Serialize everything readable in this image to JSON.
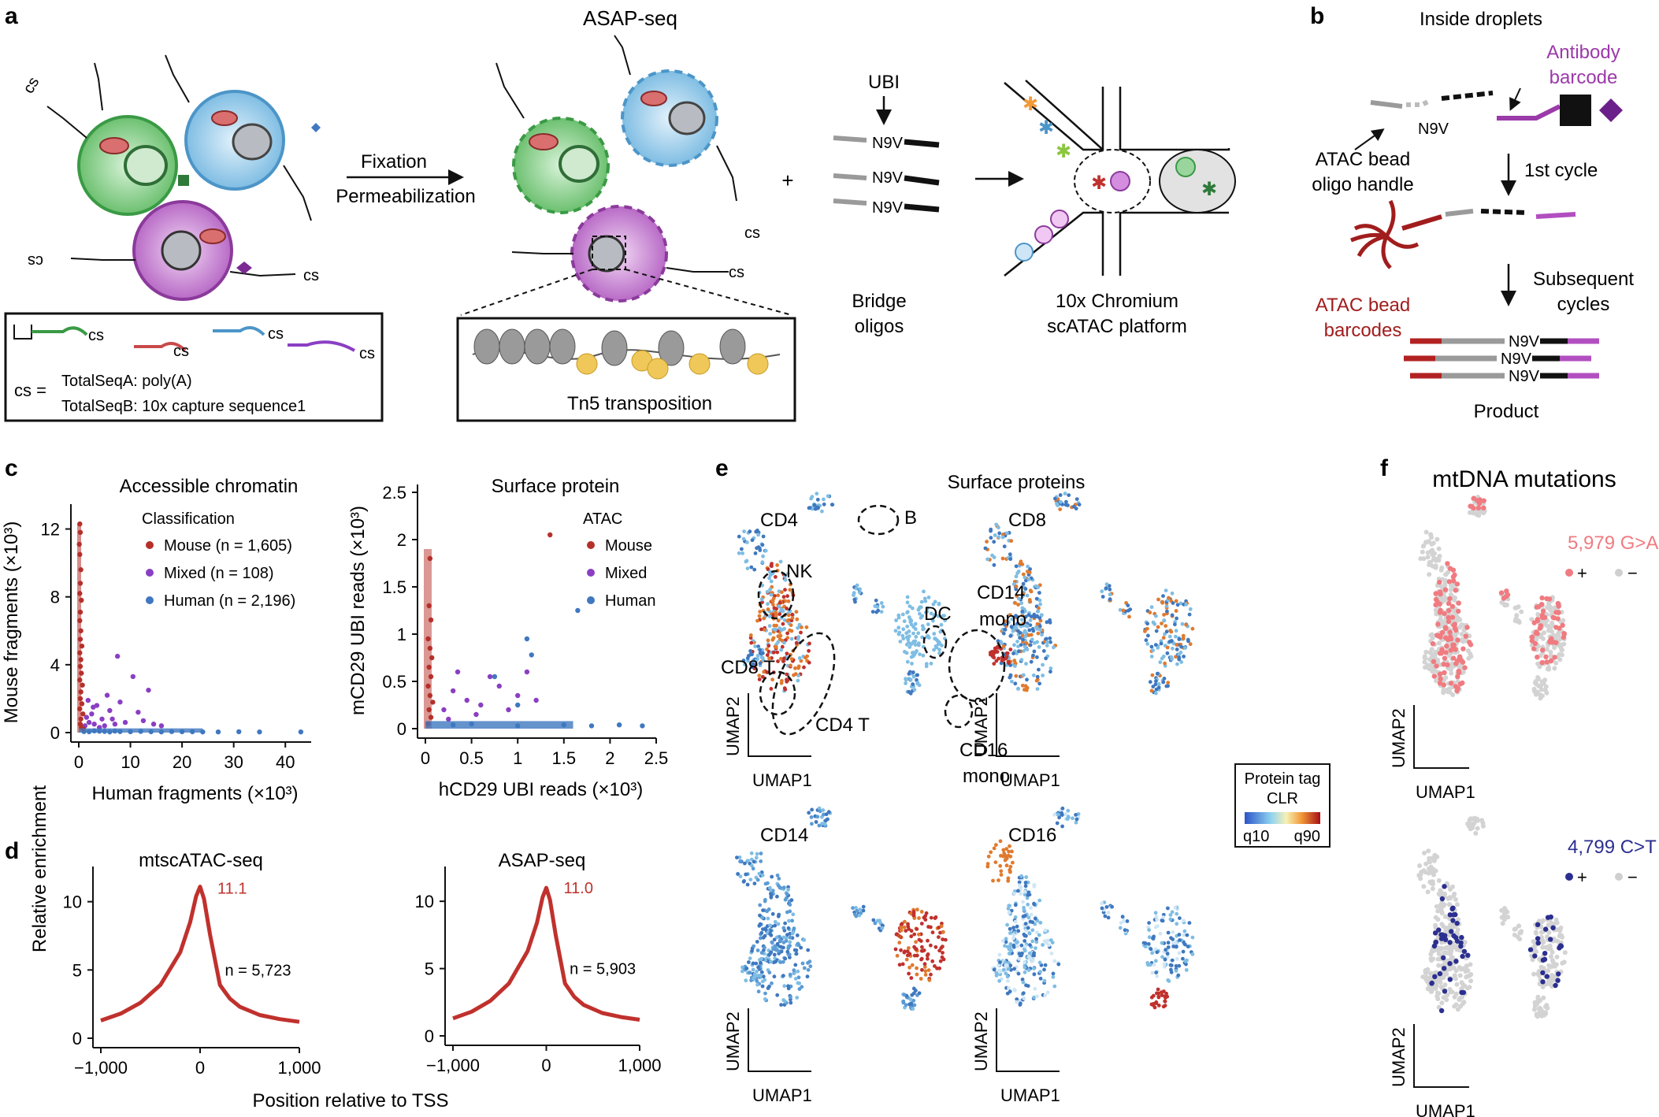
{
  "panels": {
    "a": {
      "label": "a",
      "title": "ASAP-seq",
      "arrow_top": "Fixation",
      "arrow_bottom": "Permeabilization",
      "plus": "+",
      "ubi": "UBI",
      "bridge_seq": "N9V",
      "bridge_label_1": "Bridge",
      "bridge_label_2": "oligos",
      "platform_1": "10x Chromium",
      "platform_2": "scATAC platform",
      "tn5": "Tn5 transposition",
      "cs": "cs",
      "cs_eq": "cs =",
      "legend_line1": "TotalSeqA: poly(A)",
      "legend_line2": "TotalSeqB: 10x capture sequence1"
    },
    "b": {
      "label": "b",
      "title": "Inside droplets",
      "antibody_1": "Antibody",
      "antibody_2": "barcode",
      "handle_1": "ATAC bead",
      "handle_2": "oligo handle",
      "first_cycle": "1st cycle",
      "subsequent_1": "Subsequent",
      "subsequent_2": "cycles",
      "bead_1": "ATAC bead",
      "bead_2": "barcodes",
      "product": "Product",
      "seq": "N9V"
    },
    "c": {
      "label": "c"
    },
    "d": {
      "label": "d",
      "xlabel": "Position relative to TSS",
      "ylabel": "Relative enrichment"
    },
    "e": {
      "label": "e",
      "title": "Surface proteins",
      "umap1": "UMAP1",
      "umap2": "UMAP2",
      "markers": [
        "CD4",
        "CD8",
        "CD14",
        "CD16"
      ],
      "clusters": {
        "b": "B",
        "nk": "NK",
        "dc": "DC",
        "cd14_1": "CD14",
        "cd14_2": "mono",
        "cd8t": "CD8 T",
        "cd4t": "CD4 T",
        "cd16_1": "CD16",
        "cd16_2": "mono"
      },
      "legend_title_1": "Protein tag",
      "legend_title_2": "CLR",
      "legend_low": "q10",
      "legend_high": "q90"
    },
    "f": {
      "label": "f",
      "title": "mtDNA mutations",
      "mut1": "5,979 G>A",
      "mut2": "4,799 C>T",
      "plus": "+",
      "minus": "−",
      "color1": "#f07b80",
      "color2": "#2b2f8f"
    }
  },
  "chart_data": [
    {
      "panel": "c-left",
      "type": "scatter",
      "title": "Accessible chromatin",
      "xlabel": "Human fragments (×10³)",
      "ylabel": "Mouse fragments (×10³)",
      "xlim": [
        0,
        45
      ],
      "ylim": [
        0,
        13
      ],
      "xticks": [
        "0",
        "10",
        "20",
        "30",
        "40"
      ],
      "yticks": [
        "0",
        "4",
        "8",
        "12"
      ],
      "legend_title": "Classification",
      "series": [
        {
          "name": "Mouse",
          "label": "Mouse (n = 1,605)",
          "color": "#b5302a",
          "points": [
            [
              0.2,
              12.3
            ],
            [
              0.3,
              11.8
            ],
            [
              0.1,
              11.1
            ],
            [
              0.2,
              10.5
            ],
            [
              0.4,
              9.6
            ],
            [
              0.3,
              8.8
            ],
            [
              0.2,
              8.2
            ],
            [
              0.5,
              7.8
            ],
            [
              0.3,
              7.1
            ],
            [
              0.2,
              6.6
            ],
            [
              0.4,
              6.0
            ],
            [
              0.3,
              5.5
            ],
            [
              0.6,
              5.1
            ],
            [
              0.2,
              4.7
            ],
            [
              0.4,
              4.3
            ],
            [
              0.3,
              3.9
            ],
            [
              0.5,
              3.5
            ],
            [
              0.2,
              3.1
            ],
            [
              0.7,
              2.8
            ],
            [
              0.4,
              2.4
            ],
            [
              0.3,
              2.0
            ],
            [
              0.6,
              1.7
            ],
            [
              0.2,
              1.4
            ],
            [
              0.8,
              1.1
            ],
            [
              0.4,
              0.8
            ],
            [
              0.3,
              0.5
            ],
            [
              0.5,
              0.3
            ],
            [
              0.9,
              0.2
            ]
          ]
        },
        {
          "name": "Mixed",
          "label": "Mixed (n = 108)",
          "color": "#8a3fc3",
          "points": [
            [
              7.5,
              4.5
            ],
            [
              10.5,
              3.3
            ],
            [
              13.5,
              2.5
            ],
            [
              5.5,
              2.2
            ],
            [
              8.0,
              1.8
            ],
            [
              11.5,
              1.2
            ],
            [
              3.5,
              1.6
            ],
            [
              2.5,
              1.1
            ],
            [
              6.0,
              1.3
            ],
            [
              4.5,
              0.8
            ],
            [
              1.5,
              0.9
            ],
            [
              9.0,
              0.6
            ],
            [
              14.5,
              0.5
            ],
            [
              3.0,
              0.5
            ],
            [
              2.0,
              0.6
            ],
            [
              5.0,
              0.4
            ],
            [
              7.0,
              0.5
            ],
            [
              1.2,
              0.4
            ],
            [
              4.0,
              0.3
            ],
            [
              12.5,
              0.7
            ],
            [
              16.0,
              0.4
            ],
            [
              6.5,
              0.8
            ],
            [
              2.8,
              1.5
            ],
            [
              1.8,
              1.9
            ]
          ]
        },
        {
          "name": "Human",
          "label": "Human (n = 2,196)",
          "color": "#3f78bf",
          "points": [
            [
              2,
              0.05
            ],
            [
              4,
              0.08
            ],
            [
              6,
              0.04
            ],
            [
              8,
              0.06
            ],
            [
              10,
              0.05
            ],
            [
              12,
              0.07
            ],
            [
              14,
              0.05
            ],
            [
              16,
              0.04
            ],
            [
              18,
              0.06
            ],
            [
              20,
              0.05
            ],
            [
              22,
              0.05
            ],
            [
              24,
              0.04
            ],
            [
              27,
              0.04
            ],
            [
              31,
              0.05
            ],
            [
              35,
              0.04
            ],
            [
              43,
              0.04
            ],
            [
              1,
              0.06
            ],
            [
              3,
              0.1
            ],
            [
              5,
              0.07
            ],
            [
              7,
              0.09
            ]
          ]
        }
      ]
    },
    {
      "panel": "c-right",
      "type": "scatter",
      "title": "Surface protein",
      "xlabel": "hCD29 UBI reads (×10³)",
      "ylabel": "mCD29 UBI reads (×10³)",
      "xlim": [
        0,
        2.5
      ],
      "ylim": [
        0,
        2.5
      ],
      "xticks": [
        "0",
        "0.5",
        "1",
        "1.5",
        "2",
        "2.5"
      ],
      "yticks": [
        "0",
        "0.5",
        "1",
        "1.5",
        "2",
        "2.5"
      ],
      "legend_title": "ATAC",
      "series": [
        {
          "name": "Mouse",
          "color": "#b5302a",
          "points": [
            [
              0.05,
              1.8
            ],
            [
              0.04,
              1.3
            ],
            [
              0.06,
              1.15
            ],
            [
              0.03,
              0.95
            ],
            [
              0.05,
              0.85
            ],
            [
              0.07,
              0.75
            ],
            [
              0.04,
              0.65
            ],
            [
              0.06,
              0.55
            ],
            [
              0.03,
              0.45
            ],
            [
              0.05,
              0.35
            ],
            [
              0.08,
              0.28
            ],
            [
              0.04,
              0.2
            ],
            [
              0.06,
              0.12
            ],
            [
              0.03,
              0.05
            ],
            [
              1.35,
              2.05
            ]
          ]
        },
        {
          "name": "Mixed",
          "color": "#8a3fc3",
          "points": [
            [
              0.3,
              0.4
            ],
            [
              0.45,
              0.3
            ],
            [
              0.6,
              0.25
            ],
            [
              0.8,
              0.45
            ],
            [
              1.0,
              0.35
            ],
            [
              0.55,
              0.15
            ],
            [
              0.2,
              0.2
            ],
            [
              0.9,
              0.2
            ],
            [
              1.2,
              0.3
            ],
            [
              0.35,
              0.6
            ],
            [
              0.7,
              0.55
            ],
            [
              0.25,
              0.1
            ],
            [
              1.1,
              0.6
            ]
          ]
        },
        {
          "name": "Human",
          "color": "#3f78bf",
          "points": [
            [
              1.15,
              0.78
            ],
            [
              1.1,
              0.95
            ],
            [
              0.75,
              0.55
            ],
            [
              1.65,
              1.25
            ],
            [
              1.0,
              0.25
            ],
            [
              0.5,
              0.05
            ],
            [
              1.0,
              0.03
            ],
            [
              1.5,
              0.04
            ],
            [
              1.8,
              0.03
            ],
            [
              2.1,
              0.04
            ],
            [
              2.35,
              0.03
            ],
            [
              0.3,
              0.04
            ]
          ]
        }
      ]
    },
    {
      "panel": "d-left",
      "type": "line",
      "title": "mtscATAC-seq",
      "xlim": [
        -1000,
        1000
      ],
      "ylim": [
        0,
        12
      ],
      "xticks": [
        "−1,000",
        "0",
        "1,000"
      ],
      "yticks": [
        "0",
        "5",
        "10"
      ],
      "peak_label": "11.1",
      "n_label": "n = 5,723",
      "x": [
        -1000,
        -800,
        -600,
        -400,
        -200,
        -100,
        -40,
        0,
        40,
        100,
        200,
        250,
        300,
        400,
        600,
        800,
        1000
      ],
      "y": [
        1.3,
        1.8,
        2.6,
        3.9,
        6.3,
        8.5,
        10.4,
        11.1,
        10.2,
        7.6,
        3.9,
        3.4,
        2.9,
        2.3,
        1.7,
        1.4,
        1.2
      ],
      "color": "#c0312d"
    },
    {
      "panel": "d-right",
      "type": "line",
      "title": "ASAP-seq",
      "xlim": [
        -1000,
        1000
      ],
      "ylim": [
        0,
        12
      ],
      "xticks": [
        "−1,000",
        "0",
        "1,000"
      ],
      "yticks": [
        "0",
        "5",
        "10"
      ],
      "peak_label": "11.0",
      "n_label": "n = 5,903",
      "x": [
        -1000,
        -800,
        -600,
        -400,
        -200,
        -100,
        -40,
        0,
        40,
        100,
        200,
        250,
        300,
        400,
        600,
        800,
        1000
      ],
      "y": [
        1.3,
        1.8,
        2.6,
        3.9,
        6.3,
        8.4,
        10.3,
        11.0,
        10.1,
        7.5,
        3.9,
        3.4,
        2.9,
        2.3,
        1.7,
        1.4,
        1.2
      ],
      "color": "#c0312d"
    }
  ]
}
